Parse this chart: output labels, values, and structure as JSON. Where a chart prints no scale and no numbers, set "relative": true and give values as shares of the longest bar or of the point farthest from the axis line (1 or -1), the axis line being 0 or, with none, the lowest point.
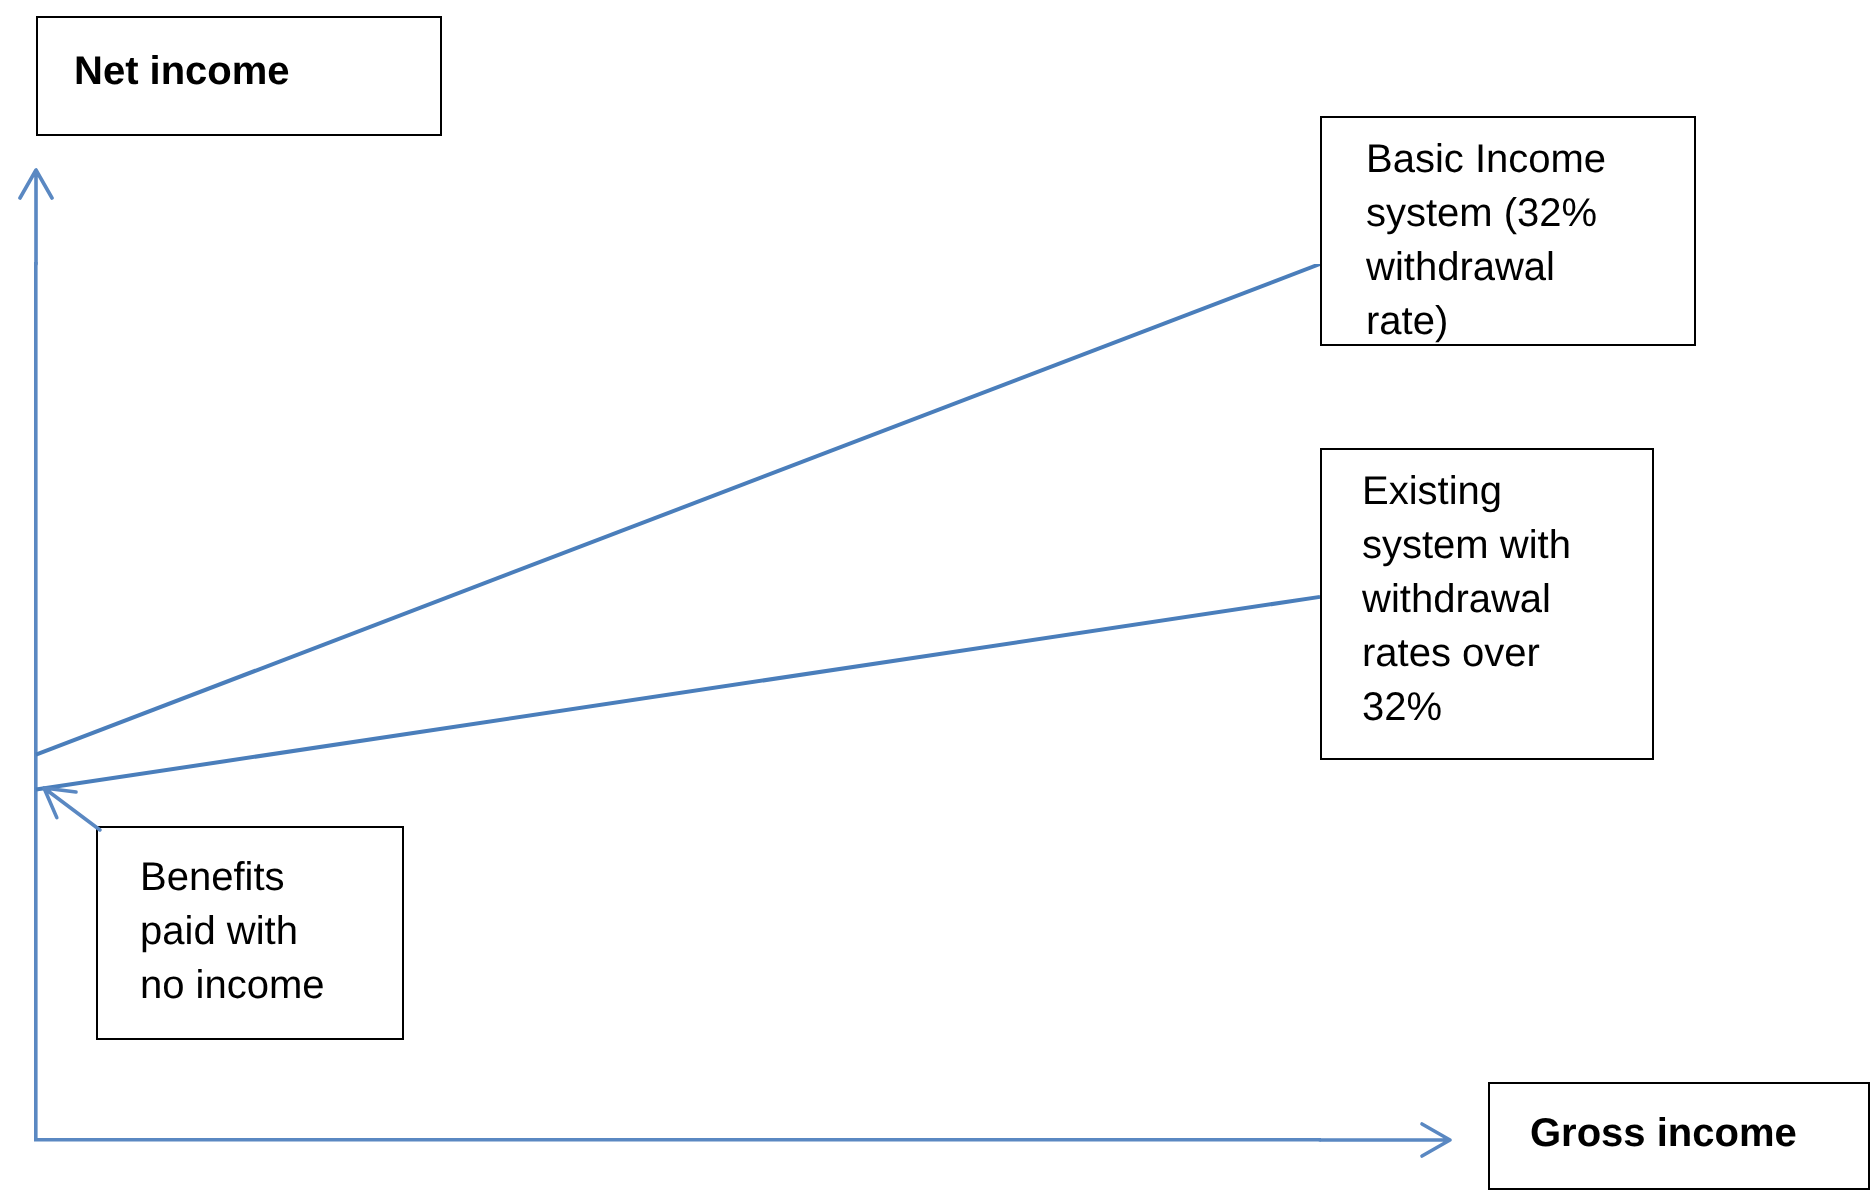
{
  "chart_data": {
    "type": "line",
    "relative": true,
    "xlabel": "Gross income",
    "ylabel": "Net income",
    "categories": [
      null,
      null
    ],
    "series": [
      {
        "name": "Basic Income system (32% withdrawal rate)",
        "color": "#4a7ebb",
        "values": [
          0.44,
          1
        ]
      },
      {
        "name": "Existing system with withdrawal rates over 32%",
        "color": "#4a7ebb",
        "values": [
          0.4,
          0.62
        ]
      }
    ],
    "annotations": [
      "Benefits paid with no income"
    ],
    "legend": false,
    "marker": "none",
    "line_style": "solid"
  }
}
